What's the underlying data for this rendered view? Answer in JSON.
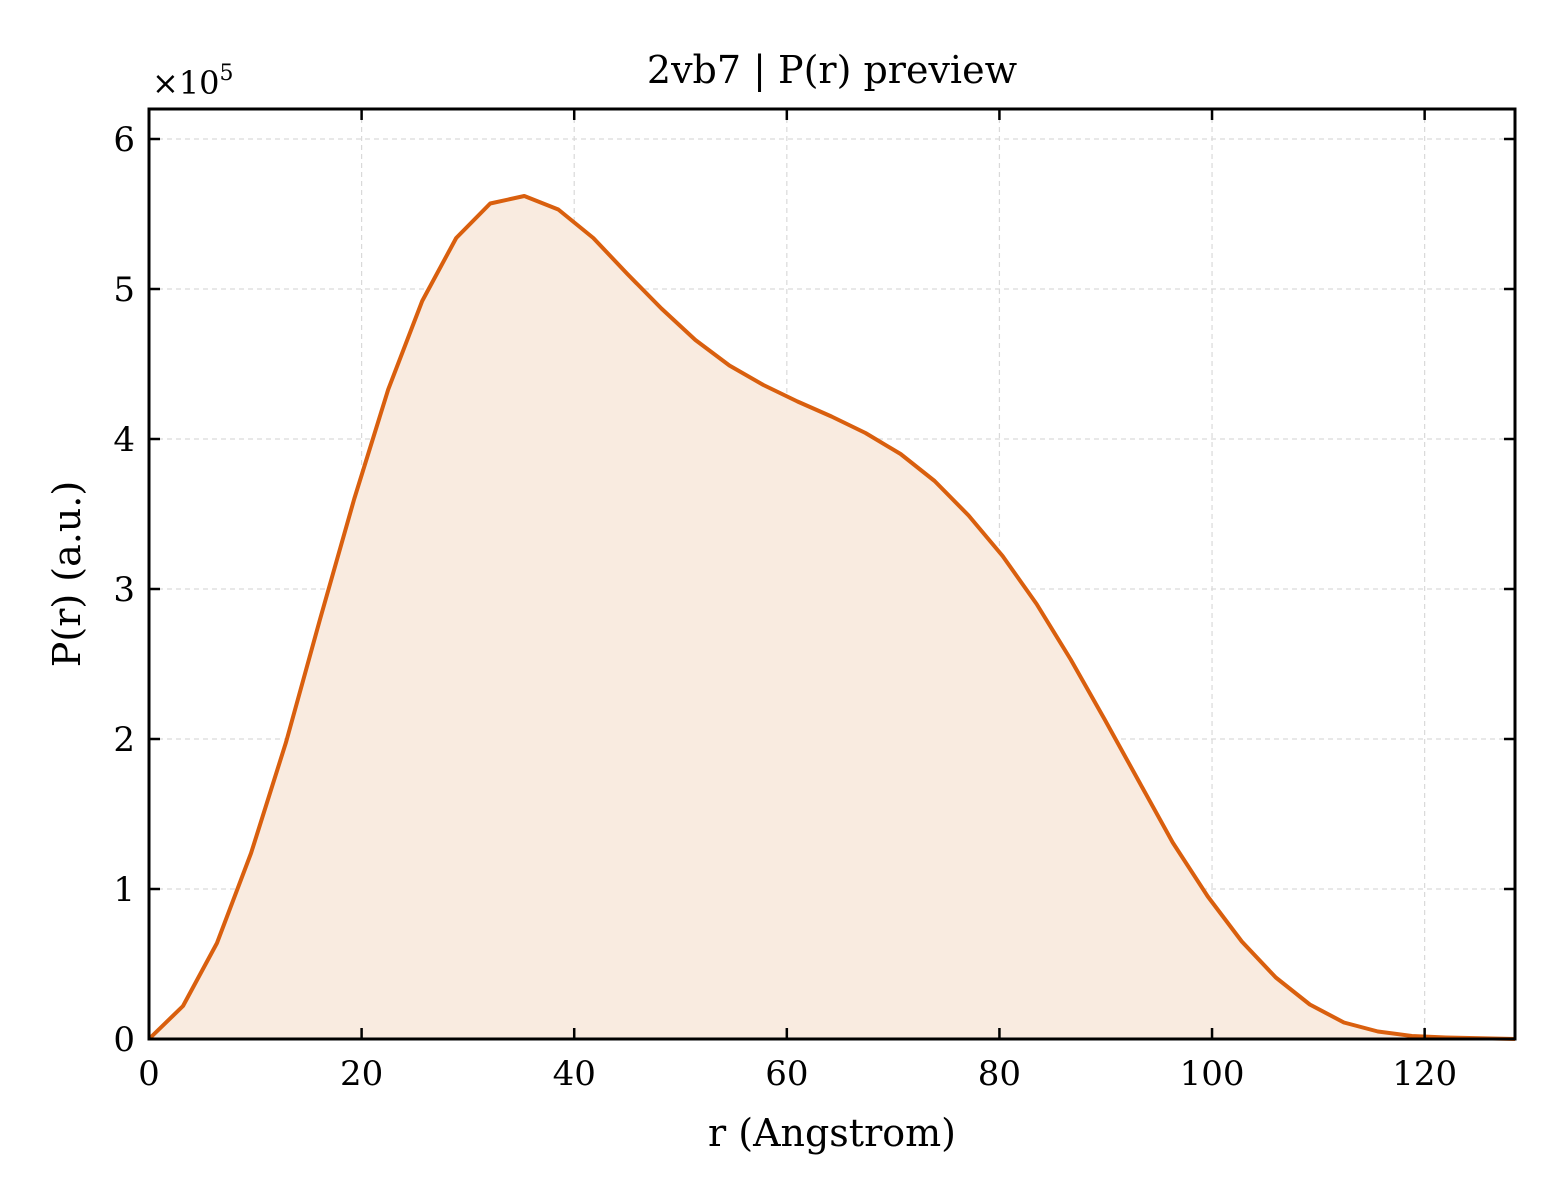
{
  "chart_data": {
    "type": "area",
    "title": "2vb7 | P(r) preview",
    "xlabel": "r (Angstrom)",
    "ylabel": "P(r) (a.u.)",
    "y_scale_base": "×10",
    "y_scale_exponent": "5",
    "xlim": [
      0,
      128.5
    ],
    "ylim": [
      0,
      6.2
    ],
    "x_ticks": [
      0,
      20,
      40,
      60,
      80,
      100,
      120
    ],
    "x_tick_labels": [
      "0",
      "20",
      "40",
      "60",
      "80",
      "100",
      "120"
    ],
    "y_ticks": [
      0,
      1,
      2,
      3,
      4,
      5,
      6
    ],
    "y_tick_labels": [
      "0",
      "1",
      "2",
      "3",
      "4",
      "5",
      "6"
    ],
    "grid": true,
    "line_color": "#d95f0e",
    "fill_color": "#f9ebe0",
    "series": [
      {
        "x": [
          0,
          3.2,
          6.4,
          9.6,
          12.9,
          16.1,
          19.3,
          22.5,
          25.7,
          28.9,
          32.1,
          35.3,
          38.5,
          41.8,
          45.0,
          48.2,
          51.4,
          54.6,
          57.8,
          61.0,
          64.2,
          67.4,
          70.7,
          73.9,
          77.1,
          80.3,
          83.5,
          86.7,
          89.9,
          93.1,
          96.3,
          99.6,
          102.8,
          106.0,
          109.2,
          112.4,
          115.6,
          118.8,
          122.0,
          125.3,
          128.5
        ],
        "y": [
          0.0,
          0.22,
          0.64,
          1.24,
          1.98,
          2.8,
          3.6,
          4.33,
          4.92,
          5.34,
          5.57,
          5.62,
          5.53,
          5.34,
          5.1,
          4.87,
          4.66,
          4.49,
          4.36,
          4.25,
          4.15,
          4.04,
          3.9,
          3.72,
          3.49,
          3.22,
          2.9,
          2.53,
          2.13,
          1.72,
          1.31,
          0.95,
          0.65,
          0.41,
          0.23,
          0.11,
          0.05,
          0.02,
          0.01,
          0.005,
          0.0
        ]
      }
    ]
  }
}
